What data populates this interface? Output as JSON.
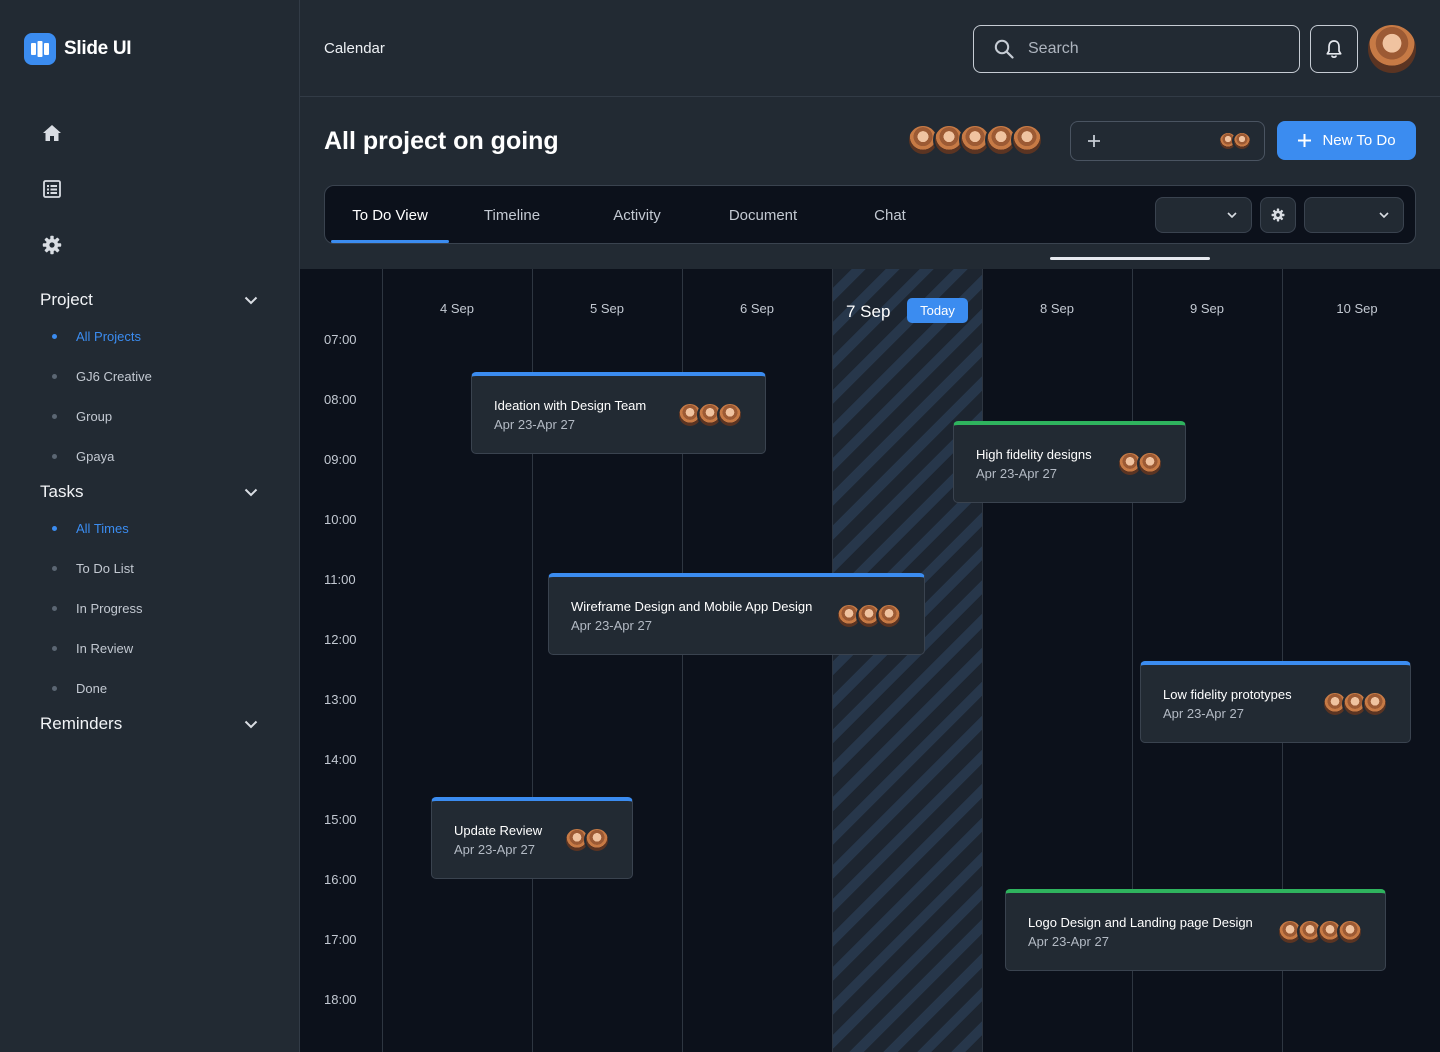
{
  "app": {
    "name": "Slide UI",
    "brand_color": "#3b8cf0"
  },
  "sidebar": {
    "nav_icons": [
      "home-icon",
      "list-icon",
      "gear-icon"
    ],
    "sections": [
      {
        "title": "Project",
        "items": [
          {
            "label": "All Projects",
            "active": true
          },
          {
            "label": "GJ6 Creative",
            "active": false
          },
          {
            "label": "Group",
            "active": false
          },
          {
            "label": "Gpaya",
            "active": false
          }
        ]
      },
      {
        "title": "Tasks",
        "items": [
          {
            "label": "All Times",
            "active": true
          },
          {
            "label": "To Do List",
            "active": false
          },
          {
            "label": "In Progress",
            "active": false
          },
          {
            "label": "In Review",
            "active": false
          },
          {
            "label": "Done",
            "active": false
          }
        ]
      },
      {
        "title": "Reminders",
        "items": []
      }
    ]
  },
  "header": {
    "page_label": "Calendar",
    "search_placeholder": "Search"
  },
  "project": {
    "title": "All project on going",
    "new_button": "New To Do",
    "tabs": [
      "To Do View",
      "Timeline",
      "Activity",
      "Document",
      "Chat"
    ],
    "active_tab": 0
  },
  "calendar": {
    "days": [
      "4 Sep",
      "5 Sep",
      "6 Sep",
      "7 Sep",
      "8 Sep",
      "9 Sep",
      "10 Sep"
    ],
    "today_badge": "Today",
    "hours": [
      "07:00",
      "08:00",
      "09:00",
      "10:00",
      "11:00",
      "12:00",
      "13:00",
      "14:00",
      "15:00",
      "16:00",
      "17:00",
      "18:00"
    ],
    "events": [
      {
        "title": "Ideation with Design Team",
        "dates": "Apr 23-Apr 27",
        "color": "#3b8cf0"
      },
      {
        "title": "High fidelity designs",
        "dates": "Apr 23-Apr 27",
        "color": "#2fb35e"
      },
      {
        "title": "Wireframe Design and Mobile App Design",
        "dates": "Apr 23-Apr 27",
        "color": "#3b8cf0"
      },
      {
        "title": "Low fidelity prototypes",
        "dates": "Apr 23-Apr 27",
        "color": "#3b8cf0"
      },
      {
        "title": "Update Review",
        "dates": "Apr 23-Apr 27",
        "color": "#3b8cf0"
      },
      {
        "title": "Logo Design and Landing page Design",
        "dates": "Apr 23-Apr 27",
        "color": "#2fb35e"
      }
    ]
  }
}
